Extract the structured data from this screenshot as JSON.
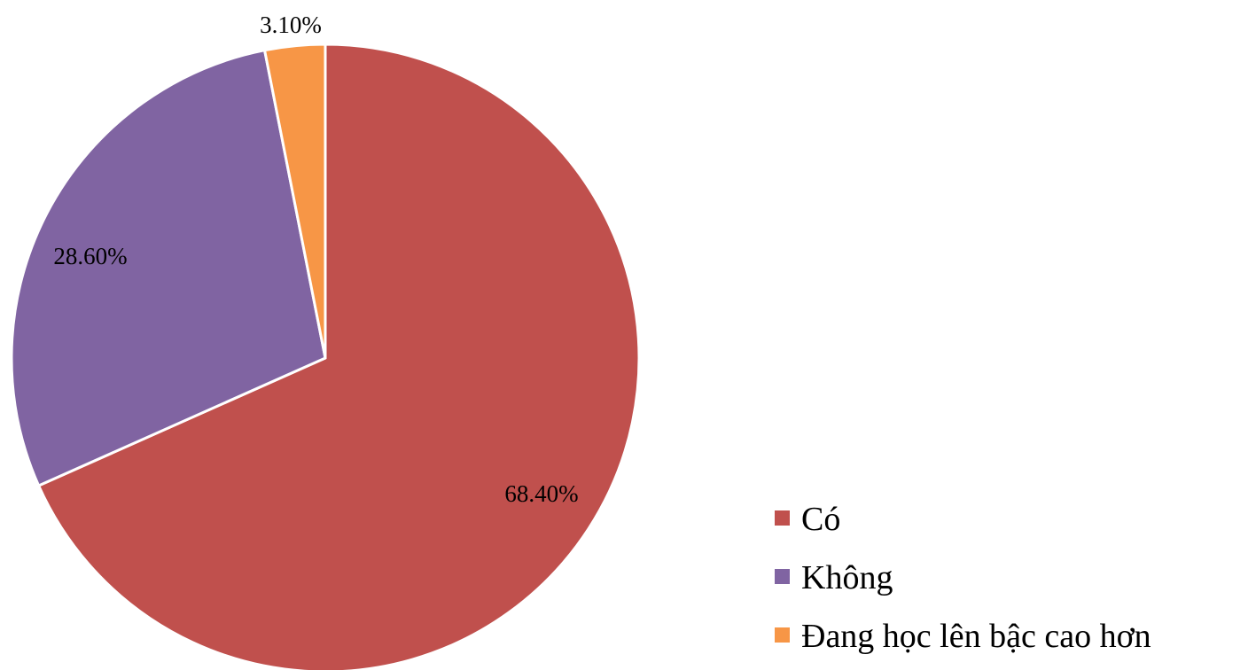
{
  "chart_data": {
    "type": "pie",
    "title": "",
    "start_angle": "12 o'clock",
    "direction": "clockwise",
    "legend_position": "right-bottom",
    "slices": [
      {
        "label": "Có",
        "value": 68.4,
        "display": "68.40%",
        "color": "#C0504D"
      },
      {
        "label": "Không",
        "value": 28.6,
        "display": "28.60%",
        "color": "#8064A2"
      },
      {
        "label": "Đang học lên bậc cao hơn",
        "value": 3.1,
        "display": "3.10%",
        "color": "#F79646"
      }
    ]
  }
}
